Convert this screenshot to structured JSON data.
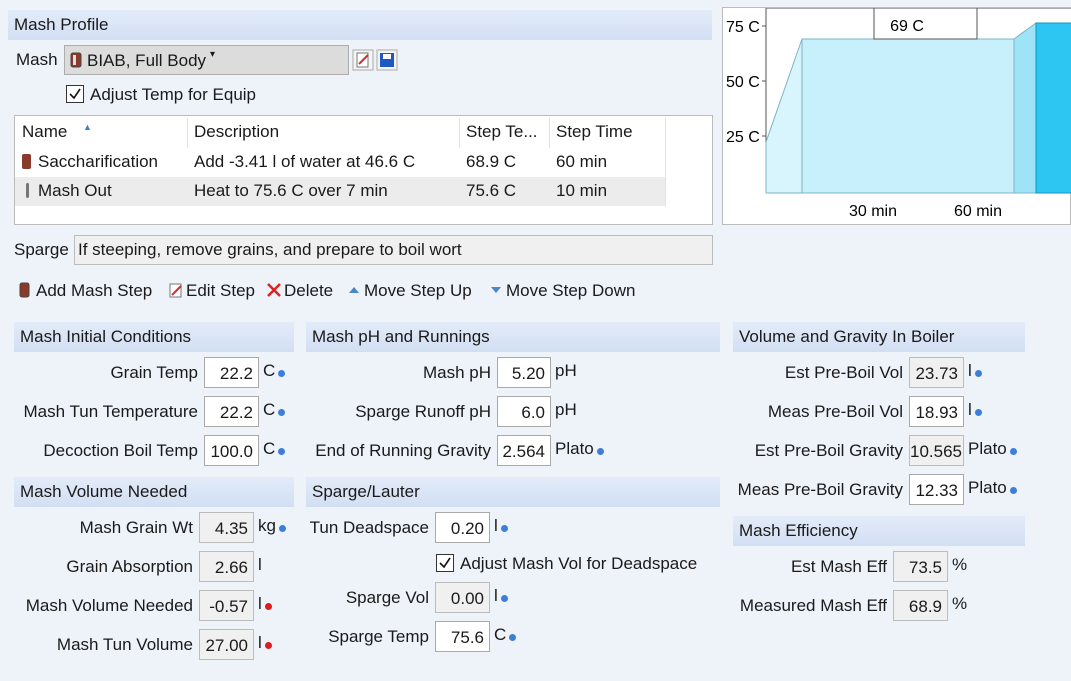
{
  "mash_profile": {
    "title": "Mash Profile",
    "mash_label": "Mash",
    "mash_select": "BIAB, Full Body",
    "adjust_temp": "Adjust Temp for Equip",
    "adjust_temp_checked": true
  },
  "steps_table": {
    "headers": [
      "Name",
      "Description",
      "Step Te...",
      "Step Time"
    ],
    "rows": [
      [
        "Saccharification",
        "Add -3.41 l of water at 46.6 C",
        "68.9 C",
        "60 min"
      ],
      [
        "Mash Out",
        "Heat to 75.6 C over 7 min",
        "75.6 C",
        "10 min"
      ]
    ]
  },
  "sparge": {
    "label": "Sparge",
    "text": "If steeping, remove grains, and prepare to boil wort"
  },
  "toolbar": [
    "Add Mash Step",
    "Edit Step",
    "Delete",
    "Move Step Up",
    "Move Step Down"
  ],
  "profile_chart": {
    "y_labels": [
      "75 C",
      "50 C",
      "25 C"
    ],
    "x_labels": [
      "30 min",
      "60 min"
    ],
    "hover_label": "69 C"
  },
  "sections": [
    {
      "title": "Mash Initial Conditions",
      "fields": [
        {
          "label": "Grain Temp",
          "value": "22.2",
          "unit": "C",
          "dot": "#3d7fd8"
        },
        {
          "label": "Mash Tun Temperature",
          "value": "22.2",
          "unit": "C",
          "dot": "#3d7fd8"
        },
        {
          "label": "Decoction Boil Temp",
          "value": "100.0",
          "unit": "C",
          "dot": "#3d7fd8"
        }
      ]
    },
    {
      "title": "Mash Volume Needed",
      "fields": [
        {
          "label": "Mash Grain Wt",
          "value": "4.35",
          "unit": "kg",
          "dot": "#3d7fd8",
          "readonly": true
        },
        {
          "label": "Grain Absorption",
          "value": "2.66",
          "unit": "l",
          "readonly": true
        },
        {
          "label": "Mash Volume Needed",
          "value": "-0.57",
          "unit": "l",
          "dot": "#d81e1e",
          "readonly": true
        },
        {
          "label": "Mash Tun Volume",
          "value": "27.00",
          "unit": "l",
          "dot": "#d81e1e",
          "readonly": true
        }
      ]
    },
    {
      "title": "Mash pH and Runnings",
      "fields": [
        {
          "label": "Mash pH",
          "value": "5.20",
          "unit": "pH"
        },
        {
          "label": "Sparge Runoff pH",
          "value": "6.0",
          "unit": "pH"
        },
        {
          "label": "End of Running Gravity",
          "value": "2.564",
          "unit": "Plato",
          "dot": "#3d7fd8"
        }
      ]
    },
    {
      "title": "Sparge/Lauter",
      "fields": [
        {
          "label": "Tun Deadspace",
          "value": "0.20",
          "unit": "l",
          "dot": "#3d7fd8"
        },
        {
          "label": "Sparge Vol",
          "value": "0.00",
          "unit": "l",
          "dot": "#3d7fd8",
          "readonly": true
        },
        {
          "label": "Sparge Temp",
          "value": "75.6",
          "unit": "C",
          "dot": "#3d7fd8"
        }
      ],
      "checkbox": "Adjust Mash Vol for Deadspace",
      "checkbox_checked": true
    },
    {
      "title": "Volume and Gravity In Boiler",
      "fields": [
        {
          "label": "Est Pre-Boil Vol",
          "value": "23.73",
          "unit": "l",
          "dot": "#3d7fd8",
          "readonly": true
        },
        {
          "label": "Meas Pre-Boil Vol",
          "value": "18.93",
          "unit": "l",
          "dot": "#3d7fd8"
        },
        {
          "label": "Est Pre-Boil Gravity",
          "value": "10.565",
          "unit": "Plato",
          "dot": "#3d7fd8",
          "readonly": true
        },
        {
          "label": "Meas Pre-Boil Gravity",
          "value": "12.33",
          "unit": "Plato",
          "dot": "#3d7fd8"
        }
      ]
    },
    {
      "title": "Mash Efficiency",
      "fields": [
        {
          "label": "Est Mash Eff",
          "value": "73.5",
          "unit": "%",
          "readonly": true
        },
        {
          "label": "Measured Mash Eff",
          "value": "68.9",
          "unit": "%",
          "readonly": true
        }
      ]
    }
  ]
}
